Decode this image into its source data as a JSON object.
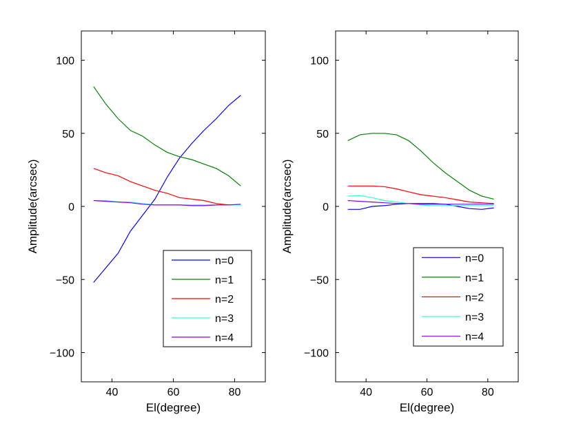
{
  "chart_data": [
    {
      "type": "line",
      "xlabel": "El(degree)",
      "ylabel": "Amplitude(arcsec)",
      "xlim": [
        30,
        90
      ],
      "ylim": [
        -120,
        120
      ],
      "xticks": [
        40,
        60,
        80
      ],
      "yticks": [
        -100,
        -50,
        0,
        50,
        100
      ],
      "legend_position": "bottom-right",
      "x": [
        34,
        38,
        42,
        46,
        50,
        54,
        58,
        62,
        66,
        70,
        74,
        78,
        82
      ],
      "series": [
        {
          "name": "n=0",
          "color": "#0000ff",
          "values": [
            -52,
            -42,
            -32,
            -17,
            -6,
            5,
            20,
            33,
            43,
            52,
            60,
            69,
            76
          ]
        },
        {
          "name": "n=1",
          "color": "#008000",
          "values": [
            82,
            70,
            60,
            52,
            48,
            42,
            37,
            34,
            32,
            29,
            26,
            21,
            14
          ]
        },
        {
          "name": "n=2",
          "color": "#ff0000",
          "values": [
            26,
            23,
            21,
            17,
            14,
            11,
            9,
            6,
            5,
            4,
            2,
            1,
            1
          ]
        },
        {
          "name": "n=3",
          "color": "#33ffcc",
          "values": [
            4,
            4,
            3,
            3,
            2,
            1,
            1,
            1,
            1,
            1,
            1,
            1,
            1
          ]
        },
        {
          "name": "n=4",
          "color": "#8000ff",
          "values": [
            4,
            3.5,
            3,
            2.5,
            1.5,
            1,
            1,
            1,
            0.5,
            0.5,
            1,
            1,
            1.5
          ]
        }
      ]
    },
    {
      "type": "line",
      "xlabel": "El(degree)",
      "ylabel": "Amplitude(arcsec)",
      "xlim": [
        30,
        90
      ],
      "ylim": [
        -120,
        120
      ],
      "xticks": [
        40,
        60,
        80
      ],
      "yticks": [
        -100,
        -50,
        0,
        50,
        100
      ],
      "legend_position": "bottom-right",
      "x": [
        34,
        38,
        42,
        46,
        50,
        54,
        58,
        62,
        66,
        70,
        74,
        78,
        82
      ],
      "series": [
        {
          "name": "n=0",
          "color": "#0000ff",
          "values": [
            -2,
            -2,
            0,
            0.5,
            1.5,
            2,
            2,
            2,
            1.5,
            0,
            -1.5,
            -2,
            -1
          ]
        },
        {
          "name": "n=1",
          "color": "#008000",
          "values": [
            45,
            49,
            50,
            50,
            49,
            45,
            38,
            30,
            23,
            17,
            11,
            7,
            5
          ]
        },
        {
          "name": "n=2",
          "color": "#ff0000",
          "values": [
            14,
            14,
            14,
            13.5,
            12,
            10,
            8,
            7,
            6,
            4.5,
            3,
            2.5,
            2
          ]
        },
        {
          "name": "n=3",
          "color": "#33ffcc",
          "values": [
            7,
            7.5,
            6,
            4,
            3,
            2,
            1,
            0.5,
            0.5,
            0.5,
            0.5,
            0.5,
            0.5
          ]
        },
        {
          "name": "n=4",
          "color": "#8000ff",
          "values": [
            4,
            3.5,
            3,
            2.5,
            2,
            2,
            1.5,
            1.5,
            1.5,
            1.5,
            1.5,
            1.5,
            1.5
          ]
        }
      ]
    }
  ]
}
